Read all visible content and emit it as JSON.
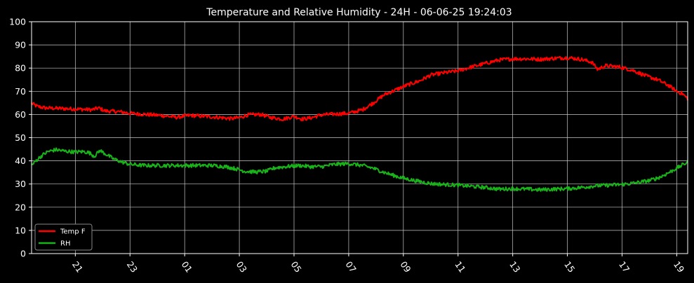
{
  "chart_data": {
    "type": "line",
    "title": "Temperature and Relative Humidity - 24H - 06-06-25 19:24:03",
    "xlabel": "",
    "ylabel": "",
    "ylim": [
      0,
      100
    ],
    "yticks": [
      0,
      10,
      20,
      30,
      40,
      50,
      60,
      70,
      80,
      90,
      100
    ],
    "xlim": [
      19.4,
      43.4
    ],
    "xticks": [
      {
        "value": 21,
        "label": "21"
      },
      {
        "value": 23,
        "label": "23"
      },
      {
        "value": 25,
        "label": "01"
      },
      {
        "value": 27,
        "label": "03"
      },
      {
        "value": 29,
        "label": "05"
      },
      {
        "value": 31,
        "label": "07"
      },
      {
        "value": 33,
        "label": "09"
      },
      {
        "value": 35,
        "label": "11"
      },
      {
        "value": 37,
        "label": "13"
      },
      {
        "value": 39,
        "label": "15"
      },
      {
        "value": 41,
        "label": "17"
      },
      {
        "value": 43,
        "label": "19"
      }
    ],
    "grid": true,
    "legend_position": "bottom-left",
    "background": "#000000",
    "series": [
      {
        "name": "Temp F",
        "color": "#ff0000",
        "points": [
          [
            19.4,
            64.8
          ],
          [
            19.6,
            63.5
          ],
          [
            19.9,
            62.8
          ],
          [
            20.4,
            62.6
          ],
          [
            20.9,
            62.4
          ],
          [
            21.3,
            62.2
          ],
          [
            21.6,
            62.0
          ],
          [
            21.85,
            62.8
          ],
          [
            22.1,
            61.5
          ],
          [
            22.6,
            61.2
          ],
          [
            23.0,
            60.5
          ],
          [
            23.6,
            60.0
          ],
          [
            24.2,
            59.5
          ],
          [
            24.7,
            58.8
          ],
          [
            25.2,
            59.6
          ],
          [
            25.7,
            59.2
          ],
          [
            26.2,
            58.8
          ],
          [
            26.7,
            58.2
          ],
          [
            27.0,
            58.6
          ],
          [
            27.3,
            59.8
          ],
          [
            27.8,
            60.0
          ],
          [
            28.1,
            58.8
          ],
          [
            28.6,
            58.0
          ],
          [
            29.0,
            59.2
          ],
          [
            29.3,
            58.0
          ],
          [
            29.6,
            58.5
          ],
          [
            30.0,
            59.8
          ],
          [
            30.5,
            60.2
          ],
          [
            31.0,
            60.5
          ],
          [
            31.5,
            62.0
          ],
          [
            31.9,
            65.0
          ],
          [
            32.3,
            68.5
          ],
          [
            32.7,
            70.5
          ],
          [
            33.1,
            72.5
          ],
          [
            33.6,
            74.5
          ],
          [
            34.0,
            77.0
          ],
          [
            34.5,
            78.0
          ],
          [
            35.0,
            78.8
          ],
          [
            35.5,
            80.5
          ],
          [
            36.0,
            82.0
          ],
          [
            36.5,
            83.5
          ],
          [
            37.0,
            84.0
          ],
          [
            37.5,
            84.0
          ],
          [
            38.0,
            83.8
          ],
          [
            38.5,
            84.2
          ],
          [
            39.0,
            84.5
          ],
          [
            39.5,
            83.8
          ],
          [
            39.9,
            82.5
          ],
          [
            40.1,
            79.5
          ],
          [
            40.4,
            81.0
          ],
          [
            40.9,
            80.5
          ],
          [
            41.4,
            79.0
          ],
          [
            41.9,
            76.5
          ],
          [
            42.3,
            75.0
          ],
          [
            42.7,
            72.5
          ],
          [
            43.0,
            70.0
          ],
          [
            43.2,
            69.0
          ],
          [
            43.4,
            66.8
          ]
        ]
      },
      {
        "name": "RH",
        "color": "#19b31a",
        "points": [
          [
            19.4,
            38.0
          ],
          [
            19.6,
            40.5
          ],
          [
            19.8,
            42.5
          ],
          [
            20.0,
            44.0
          ],
          [
            20.3,
            44.8
          ],
          [
            20.6,
            44.2
          ],
          [
            21.0,
            43.8
          ],
          [
            21.3,
            44.0
          ],
          [
            21.5,
            43.5
          ],
          [
            21.7,
            42.0
          ],
          [
            21.9,
            44.5
          ],
          [
            22.1,
            43.0
          ],
          [
            22.4,
            40.8
          ],
          [
            22.7,
            39.5
          ],
          [
            23.0,
            38.5
          ],
          [
            23.5,
            38.0
          ],
          [
            24.0,
            38.0
          ],
          [
            24.5,
            38.0
          ],
          [
            25.0,
            38.0
          ],
          [
            25.5,
            38.0
          ],
          [
            26.0,
            38.0
          ],
          [
            26.5,
            37.5
          ],
          [
            26.9,
            36.5
          ],
          [
            27.2,
            35.5
          ],
          [
            27.6,
            35.2
          ],
          [
            28.0,
            35.5
          ],
          [
            28.3,
            37.0
          ],
          [
            28.7,
            37.5
          ],
          [
            29.2,
            38.0
          ],
          [
            29.6,
            37.5
          ],
          [
            30.0,
            37.5
          ],
          [
            30.5,
            38.5
          ],
          [
            31.0,
            38.8
          ],
          [
            31.5,
            38.0
          ],
          [
            31.9,
            36.8
          ],
          [
            32.3,
            35.0
          ],
          [
            32.7,
            33.5
          ],
          [
            33.0,
            32.5
          ],
          [
            33.4,
            31.5
          ],
          [
            34.0,
            30.2
          ],
          [
            34.5,
            29.8
          ],
          [
            35.0,
            29.5
          ],
          [
            35.5,
            29.0
          ],
          [
            36.0,
            28.5
          ],
          [
            36.5,
            27.8
          ],
          [
            37.0,
            28.0
          ],
          [
            37.5,
            27.8
          ],
          [
            38.0,
            27.5
          ],
          [
            38.5,
            27.8
          ],
          [
            39.0,
            28.0
          ],
          [
            39.5,
            28.5
          ],
          [
            40.0,
            29.2
          ],
          [
            40.5,
            29.5
          ],
          [
            41.0,
            29.8
          ],
          [
            41.5,
            30.5
          ],
          [
            42.0,
            31.5
          ],
          [
            42.4,
            33.0
          ],
          [
            42.8,
            35.5
          ],
          [
            43.1,
            37.5
          ],
          [
            43.4,
            39.5
          ]
        ]
      }
    ]
  }
}
